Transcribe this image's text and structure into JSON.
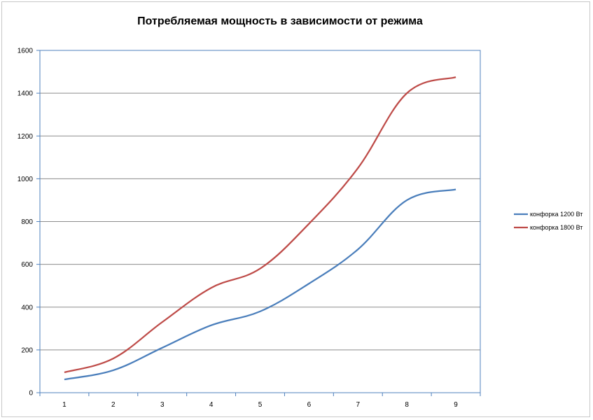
{
  "chart_data": {
    "type": "line",
    "title": "Потребляемая мощность в зависимости от режима",
    "xlabel": "",
    "ylabel": "",
    "categories": [
      "1",
      "2",
      "3",
      "4",
      "5",
      "6",
      "7",
      "8",
      "9"
    ],
    "ylim": [
      0,
      1600
    ],
    "yticks": [
      "0",
      "200",
      "400",
      "600",
      "800",
      "1000",
      "1200",
      "1400",
      "1600"
    ],
    "grid": true,
    "legend_position": "right",
    "series": [
      {
        "name": "конфорка 1200 Вт",
        "color": "#4a7ebb",
        "values": [
          62,
          105,
          210,
          315,
          380,
          510,
          670,
          900,
          950
        ]
      },
      {
        "name": "конфорка 1800 Вт",
        "color": "#be4b48",
        "values": [
          95,
          160,
          330,
          490,
          580,
          790,
          1050,
          1400,
          1475
        ]
      }
    ]
  }
}
